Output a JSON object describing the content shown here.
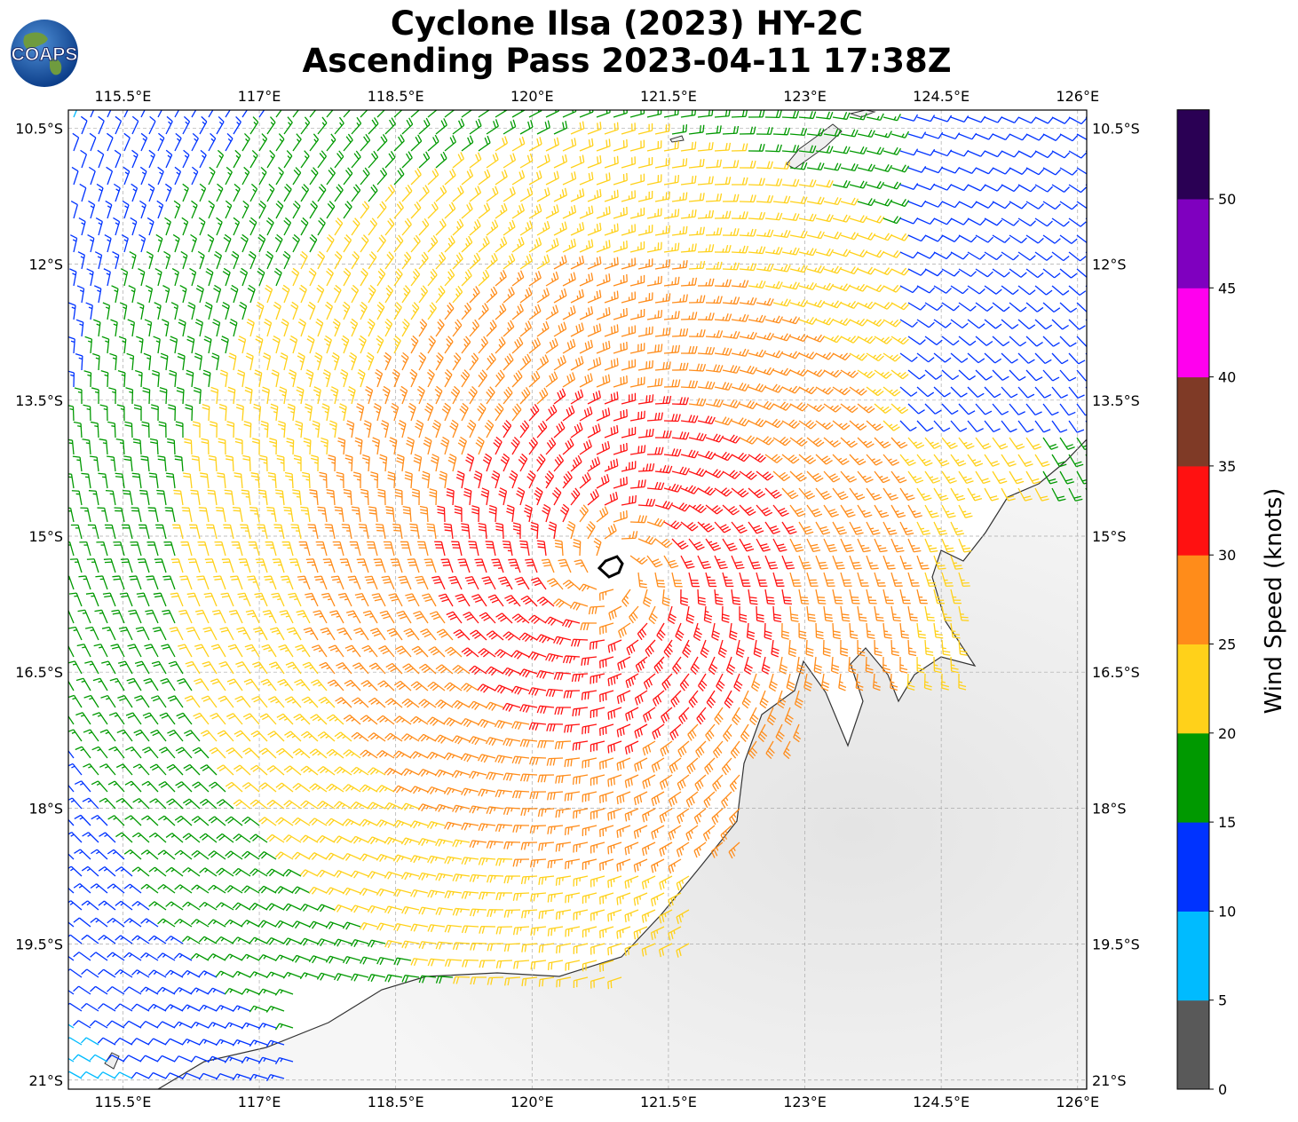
{
  "title": {
    "line1": "Cyclone Ilsa (2023) HY-2C",
    "line2": "Ascending Pass 2023-04-11 17:38Z"
  },
  "logo": {
    "text": "COAPS",
    "icon": "globe-logo-icon"
  },
  "map": {
    "lon_range": [
      114.9,
      126.1
    ],
    "lat_range": [
      -21.1,
      -10.3
    ],
    "lon_ticks": [
      "115.5°E",
      "117°E",
      "118.5°E",
      "120°E",
      "121.5°E",
      "123°E",
      "124.5°E",
      "126°E"
    ],
    "lat_ticks": [
      "10.5°S",
      "12°S",
      "13.5°S",
      "15°S",
      "16.5°S",
      "18°S",
      "19.5°S",
      "21°S"
    ],
    "gridlines": true,
    "storm_center_lon": 120.9,
    "storm_center_lat": -15.35,
    "land_color": "#eeeeee",
    "coast_color": "#333333"
  },
  "colorbar": {
    "label": "Wind Speed (knots)",
    "ticks": [
      "0",
      "5",
      "10",
      "15",
      "20",
      "25",
      "30",
      "35",
      "40",
      "45",
      "50"
    ],
    "colors": [
      "#595959",
      "#00bbff",
      "#0033ff",
      "#009900",
      "#ffd11a",
      "#ff8c1a",
      "#ff1111",
      "#7f3a26",
      "#ff00ee",
      "#7f00bf",
      "#2a0054"
    ]
  }
}
